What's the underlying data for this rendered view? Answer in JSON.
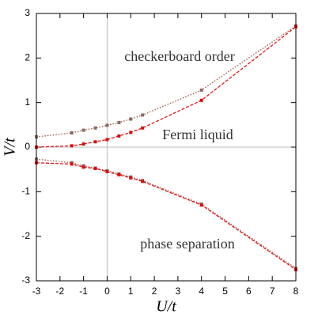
{
  "chart_data": {
    "type": "line",
    "x_label": "U/t",
    "y_label": "V/t",
    "annotations": [
      "checkerboard order",
      "Fermi liquid",
      "phase separation"
    ],
    "xlim": [
      -3,
      8
    ],
    "xticks": [
      -3,
      -2,
      -1,
      0,
      1,
      2,
      3,
      4,
      5,
      6,
      7,
      8
    ],
    "ylim": [
      -3,
      3
    ],
    "yticks": [
      -3,
      -2,
      -1,
      0,
      1,
      2,
      3
    ],
    "zero_lines": true,
    "series": [
      {
        "color": "#a0503c",
        "marker_color": "#8a6a60",
        "style": "dotted",
        "x": [
          -3,
          -1.5,
          -1,
          -0.5,
          0,
          0.5,
          1,
          1.5,
          4,
          8
        ],
        "values": [
          0.23,
          0.32,
          0.38,
          0.43,
          0.49,
          0.55,
          0.63,
          0.72,
          1.28,
          2.72
        ]
      },
      {
        "color": "#e3171c",
        "marker_color": "#d41010",
        "style": "dashed",
        "x": [
          -3,
          -1.5,
          -1,
          -0.5,
          0,
          0.5,
          1,
          1.5,
          4,
          8
        ],
        "values": [
          0.0,
          0.03,
          0.07,
          0.12,
          0.17,
          0.25,
          0.33,
          0.43,
          1.05,
          2.7
        ]
      },
      {
        "color": "#a0503c",
        "marker_color": "#8a6a60",
        "style": "dotted",
        "x": [
          -3,
          -1.5,
          -1,
          -0.5,
          0,
          0.5,
          1,
          1.5,
          4,
          8
        ],
        "values": [
          -0.27,
          -0.35,
          -0.42,
          -0.47,
          -0.53,
          -0.6,
          -0.67,
          -0.75,
          -1.28,
          -2.72
        ]
      },
      {
        "color": "#e3171c",
        "marker_color": "#d41010",
        "style": "dashed",
        "x": [
          -3,
          -1.5,
          -1,
          -0.5,
          0,
          0.5,
          1,
          1.5,
          4,
          8
        ],
        "values": [
          -0.35,
          -0.38,
          -0.45,
          -0.48,
          -0.55,
          -0.62,
          -0.69,
          -0.77,
          -1.3,
          -2.75
        ]
      }
    ]
  }
}
